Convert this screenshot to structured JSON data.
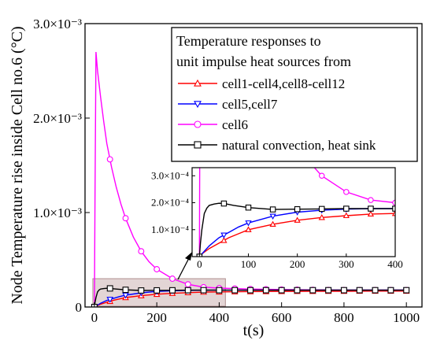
{
  "chart_data": [
    {
      "type": "line",
      "title": "",
      "xlabel": "t(s)",
      "ylabel": "Node Temperature rise inside Cell no.6 (°C)",
      "xlim": [
        -30,
        1050
      ],
      "ylim": [
        0,
        0.003
      ],
      "x_ticks": [
        0,
        200,
        400,
        600,
        800,
        1000
      ],
      "x_tick_labels": [
        "0",
        "200",
        "400",
        "600",
        "800",
        "1000"
      ],
      "y_ticks": [
        0,
        0.001,
        0.002,
        0.003
      ],
      "y_tick_labels": [
        "0",
        "1.0×10⁻³",
        "2.0×10⁻³",
        "3.0×10⁻³"
      ],
      "grid": false,
      "legend_position": "top-right",
      "legend_title": [
        "Temperature responses to",
        "unit impulse heat sources from"
      ],
      "highlight_region": {
        "x": [
          0,
          420
        ],
        "y": [
          0,
          0.0003
        ]
      },
      "series": [
        {
          "name": "cell1-cell4,cell8-cell12",
          "color": "#ff0000",
          "marker": "triangle-up",
          "x": [
            0,
            5,
            20,
            40,
            60,
            80,
            100,
            150,
            200,
            250,
            300,
            350,
            400,
            500,
            600,
            700,
            800,
            900,
            1000
          ],
          "y": [
            0,
            1e-05,
            3e-05,
            5e-05,
            7e-05,
            8.5e-05,
            0.0001,
            0.00012,
            0.000135,
            0.000145,
            0.000152,
            0.000158,
            0.00016,
            0.000163,
            0.000165,
            0.000166,
            0.000167,
            0.000168,
            0.000168
          ]
        },
        {
          "name": "cell5,cell7",
          "color": "#0000ff",
          "marker": "triangle-down",
          "x": [
            0,
            5,
            20,
            40,
            60,
            80,
            100,
            150,
            200,
            250,
            300,
            350,
            400,
            500,
            600,
            700,
            800,
            900,
            1000
          ],
          "y": [
            0,
            1e-05,
            4e-05,
            7e-05,
            9e-05,
            0.00011,
            0.000125,
            0.00015,
            0.000165,
            0.000172,
            0.000176,
            0.000178,
            0.000178,
            0.000178,
            0.000178,
            0.000178,
            0.000178,
            0.000178,
            0.000178
          ]
        },
        {
          "name": "cell6",
          "color": "#ff00ff",
          "marker": "circle",
          "x": [
            0,
            2,
            5,
            10,
            20,
            30,
            40,
            55,
            70,
            85,
            100,
            125,
            150,
            175,
            200,
            250,
            300,
            350,
            400,
            500,
            600,
            700,
            800,
            900,
            1000
          ],
          "y": [
            0,
            0.0012,
            0.0027,
            0.0025,
            0.00222,
            0.00196,
            0.00173,
            0.00148,
            0.00127,
            0.00109,
            0.00094,
            0.00074,
            0.00059,
            0.00048,
            0.0004,
            0.0003,
            0.00024,
            0.00021,
            0.0002,
            0.00019,
            0.000185,
            0.000182,
            0.00018,
            0.00018,
            0.00018
          ]
        },
        {
          "name": "natural convection, heat sink",
          "color": "#000000",
          "marker": "square",
          "x": [
            0,
            2,
            5,
            10,
            15,
            20,
            30,
            40,
            50,
            70,
            100,
            150,
            200,
            250,
            300,
            400,
            500,
            600,
            700,
            800,
            900,
            1000
          ],
          "y": [
            0,
            5e-05,
            0.0001,
            0.00016,
            0.00018,
            0.00019,
            0.000195,
            0.000198,
            0.000197,
            0.00019,
            0.000182,
            0.000175,
            0.000176,
            0.000177,
            0.000178,
            0.000178,
            0.000178,
            0.000178,
            0.000178,
            0.000178,
            0.000178,
            0.000178
          ]
        }
      ]
    },
    {
      "type": "line",
      "title": "",
      "xlabel": "",
      "ylabel": "",
      "xlim": [
        -15,
        400
      ],
      "ylim": [
        0,
        0.00033
      ],
      "x_ticks": [
        0,
        100,
        200,
        300,
        400
      ],
      "x_tick_labels": [
        "0",
        "100",
        "200",
        "300",
        "400"
      ],
      "y_ticks": [
        0.0001,
        0.0002,
        0.0003
      ],
      "y_tick_labels": [
        "1.0×10⁻⁴",
        "2.0×10⁻⁴",
        "3.0×10⁻⁴"
      ],
      "grid": false,
      "series_ref": "same series as main chart, zoomed to 0–400 s"
    }
  ]
}
